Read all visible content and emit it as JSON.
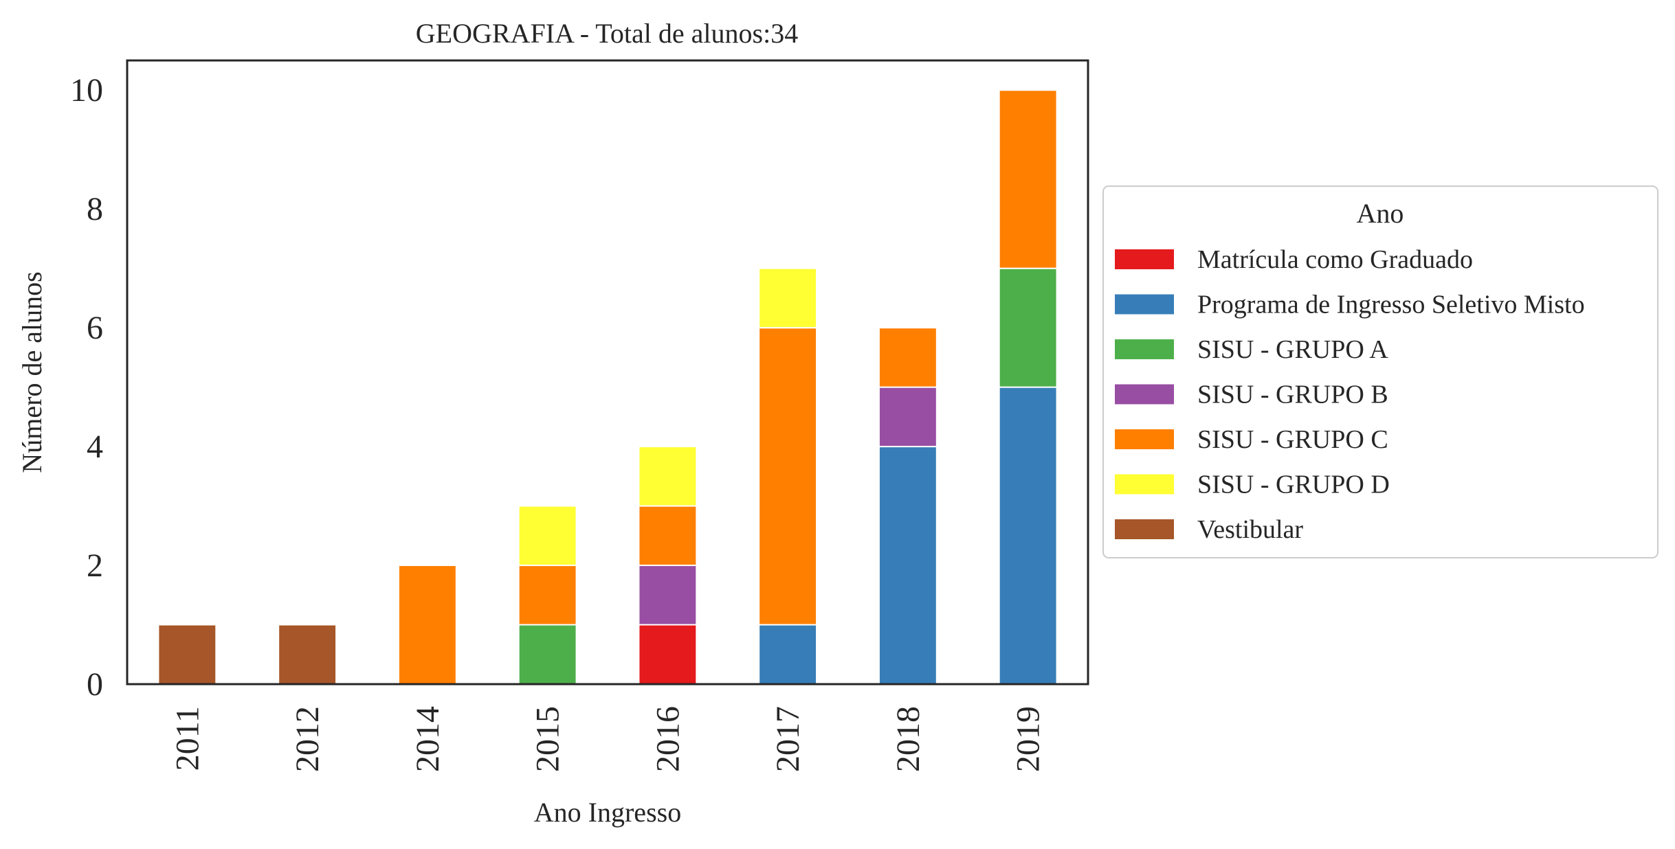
{
  "chart_data": {
    "type": "bar",
    "stacked": true,
    "title": "GEOGRAFIA - Total de alunos:34",
    "xlabel": "Ano Ingresso",
    "ylabel": "Número de alunos",
    "ylim": [
      0,
      10.5
    ],
    "yticks": [
      "0",
      "2",
      "4",
      "6",
      "8",
      "10"
    ],
    "grid": false,
    "categories": [
      "2011",
      "2012",
      "2014",
      "2015",
      "2016",
      "2017",
      "2018",
      "2019"
    ],
    "series": [
      {
        "name": "Matrícula como Graduado",
        "color": "#e41a1c",
        "values": [
          0,
          0,
          0,
          0,
          1,
          0,
          0,
          0
        ]
      },
      {
        "name": "Programa de Ingresso Seletivo Misto",
        "color": "#377eb8",
        "values": [
          0,
          0,
          0,
          0,
          0,
          1,
          4,
          5
        ]
      },
      {
        "name": "SISU - GRUPO A",
        "color": "#4daf4a",
        "values": [
          0,
          0,
          0,
          1,
          0,
          0,
          0,
          2
        ]
      },
      {
        "name": "SISU - GRUPO B",
        "color": "#984ea3",
        "values": [
          0,
          0,
          0,
          0,
          1,
          0,
          1,
          0
        ]
      },
      {
        "name": "SISU - GRUPO C",
        "color": "#ff7f00",
        "values": [
          0,
          0,
          2,
          1,
          1,
          5,
          1,
          3
        ]
      },
      {
        "name": "SISU - GRUPO D",
        "color": "#ffff33",
        "values": [
          0,
          0,
          0,
          1,
          1,
          1,
          0,
          0
        ]
      },
      {
        "name": "Vestibular",
        "color": "#a65628",
        "values": [
          1,
          1,
          0,
          0,
          0,
          0,
          0,
          0
        ]
      }
    ],
    "legend": {
      "title": "Ano",
      "placement": "right"
    }
  }
}
